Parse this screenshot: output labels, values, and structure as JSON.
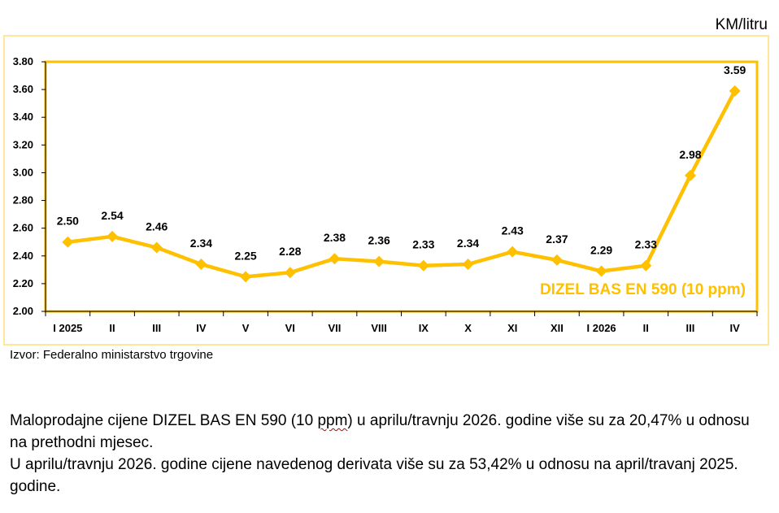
{
  "unit_label": "KM/litru",
  "source": "Izvor: Federalno ministarstvo trgovine",
  "colors": {
    "series": "#FFC000",
    "plot_border": "#FFC000",
    "outer_border": "#FFE699",
    "label_text": "#000000"
  },
  "chart_data": {
    "type": "line",
    "title": "",
    "xlabel": "",
    "ylabel": "",
    "categories": [
      "I 2025",
      "II",
      "III",
      "IV",
      "V",
      "VI",
      "VII",
      "VIII",
      "IX",
      "X",
      "XI",
      "XII",
      "I 2026",
      "II",
      "III",
      "IV"
    ],
    "series": [
      {
        "name": "DIZEL BAS EN 590 (10 ppm)",
        "values": [
          2.5,
          2.54,
          2.46,
          2.34,
          2.25,
          2.28,
          2.38,
          2.36,
          2.33,
          2.34,
          2.43,
          2.37,
          2.29,
          2.33,
          2.98,
          3.59
        ]
      }
    ],
    "ylim": [
      2.0,
      3.8
    ],
    "yticks": [
      "2.00",
      "2.20",
      "2.40",
      "2.60",
      "2.80",
      "3.00",
      "3.20",
      "3.40",
      "3.60",
      "3.80"
    ],
    "grid": false,
    "legend": "inside bottom-right"
  },
  "paragraph": {
    "line1_pre": "Maloprodajne cijene DIZEL BAS EN 590 (10 ",
    "line1_squiggle": "ppm",
    "line1_post": ") u aprilu/travnju 2026. godine više su za 20,47% u odnosu na prethodni mjesec.",
    "line2": "U aprilu/travnju 2026. godine cijene navedenog derivata više su za 53,42% u odnosu na april/travanj 2025. godine."
  }
}
